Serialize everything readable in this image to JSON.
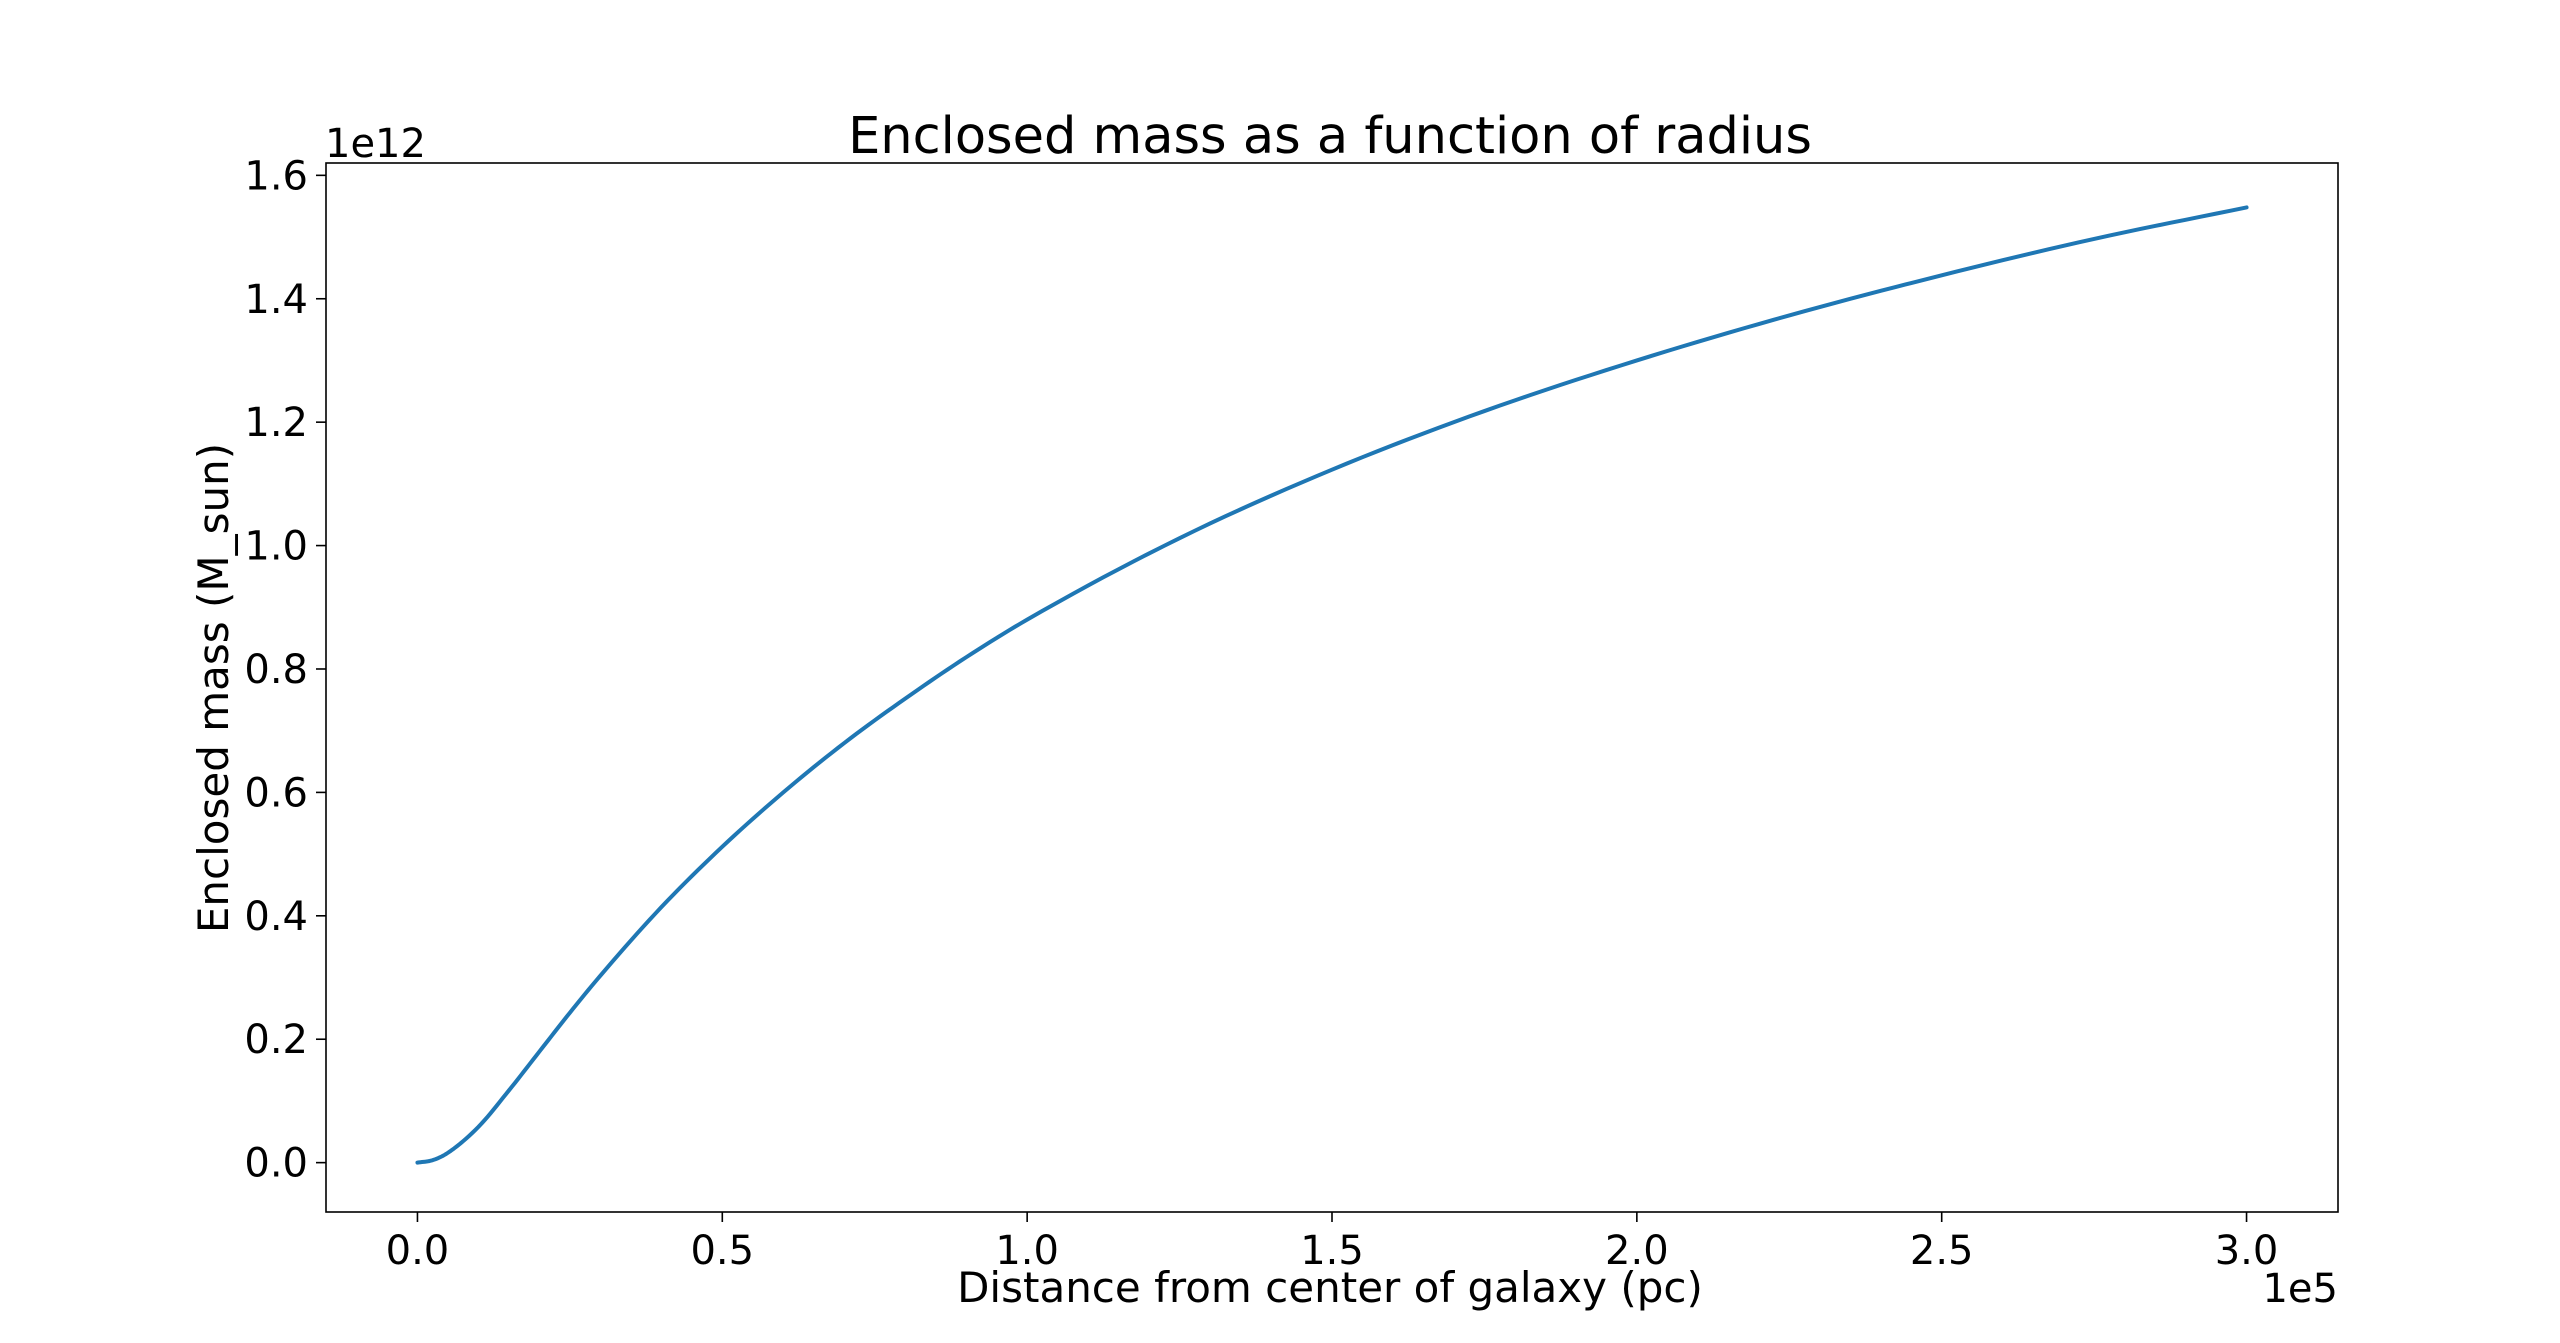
{
  "chart_data": {
    "type": "line",
    "title": "Enclosed mass as a function of radius",
    "xlabel": "Distance from center of galaxy (pc)",
    "ylabel": "Enclosed mass (M_sun)",
    "x_offset_label": "1e5",
    "y_offset_label": "1e12",
    "xlim": [
      -15000,
      315000
    ],
    "ylim": [
      -80000000000.0,
      1620000000000.0
    ],
    "grid": false,
    "line_color": "#1f77b4",
    "x_ticks": [
      0,
      50000,
      100000,
      150000,
      200000,
      250000,
      300000
    ],
    "x_tick_labels": [
      "0.0",
      "0.5",
      "1.0",
      "1.5",
      "2.0",
      "2.5",
      "3.0"
    ],
    "y_ticks": [
      0,
      200000000000,
      400000000000,
      600000000000,
      800000000000,
      1000000000000,
      1200000000000,
      1400000000000,
      1600000000000
    ],
    "y_tick_labels": [
      "0.0",
      "0.2",
      "0.4",
      "0.6",
      "0.8",
      "1.0",
      "1.2",
      "1.4",
      "1.6"
    ],
    "series": [
      {
        "x": [
          0,
          2500,
          5000,
          10000,
          15000,
          20000,
          25000,
          30000,
          40000,
          50000,
          60000,
          70000,
          80000,
          90000,
          100000,
          125000,
          150000,
          175000,
          200000,
          225000,
          250000,
          275000,
          300000
        ],
        "y": [
          0,
          4000000000,
          16000000000,
          58000000000,
          117000000000,
          180000000000,
          243000000000,
          303000000000,
          414000000000,
          512000000000,
          600000000000,
          680000000000,
          752000000000,
          819000000000,
          880000000000,
          1012000000000,
          1123000000000,
          1218000000000,
          1300000000000,
          1373000000000,
          1438000000000,
          1497000000000,
          1548000000000
        ]
      }
    ]
  }
}
